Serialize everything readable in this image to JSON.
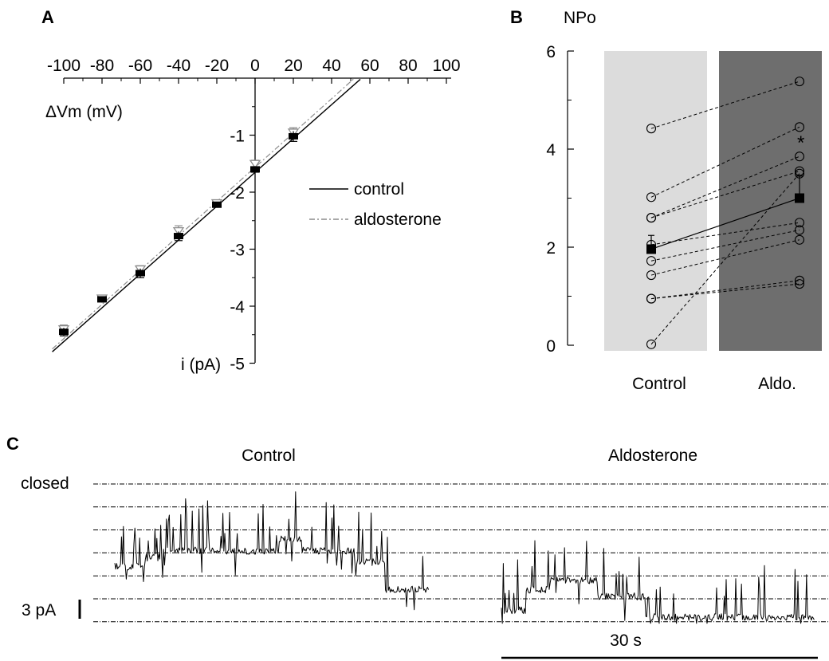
{
  "colors": {
    "control": "#000000",
    "aldosterone": "#8c8c8c",
    "control_band": "#dcdcdc",
    "aldo_band": "#6e6e6e"
  },
  "panels": {
    "a": "A",
    "b": "B",
    "c": "C"
  },
  "chart_data": [
    {
      "type": "line",
      "panel": "A",
      "xlabel": "ΔVm (mV)",
      "ylabel": "i (pA)",
      "xlim": [
        -100,
        100
      ],
      "ylim": [
        -5,
        0
      ],
      "x_ticks": [
        "-100",
        "-80",
        "-60",
        "-40",
        "-20",
        "0",
        "20",
        "40",
        "60",
        "80",
        "100"
      ],
      "y_ticks": [
        "-1",
        "-2",
        "-3",
        "-4",
        "-5"
      ],
      "x_tick_values": [
        -100,
        -80,
        -60,
        -40,
        -20,
        0,
        20,
        40,
        60,
        80,
        100
      ],
      "y_tick_values": [
        -1,
        -2,
        -3,
        -4,
        -5
      ],
      "legend": {
        "position": "right",
        "entries": [
          "control",
          "aldosterone"
        ]
      },
      "series": [
        {
          "name": "control",
          "style": "solid",
          "x": [
            -100,
            -80,
            -60,
            -40,
            -20,
            0,
            20
          ],
          "y": [
            -4.45,
            -3.88,
            -3.42,
            -2.77,
            -2.22,
            -1.6,
            -1.02
          ],
          "err": [
            0.07,
            0.04,
            0.08,
            0.08,
            0.04,
            0.05,
            0.09
          ],
          "fit": {
            "x": [
              -106,
              55
            ],
            "y": [
              -4.8,
              -0.02
            ]
          }
        },
        {
          "name": "aldosterone",
          "style": "dashdot",
          "x": [
            -100,
            -80,
            -60,
            -40,
            -20,
            0,
            20
          ],
          "y": [
            -4.4,
            -3.86,
            -3.35,
            -2.68,
            -2.19,
            -1.5,
            -0.95
          ],
          "err": [
            0.07,
            0.04,
            0.06,
            0.09,
            0.05,
            0.06,
            0.08
          ],
          "fit": {
            "x": [
              -106,
              52
            ],
            "y": [
              -4.75,
              0.0
            ]
          }
        }
      ]
    },
    {
      "type": "scatter",
      "panel": "B",
      "ylabel": "NPo",
      "ylim": [
        0,
        6
      ],
      "y_ticks": [
        "0",
        "2",
        "4",
        "6"
      ],
      "y_tick_values": [
        0,
        2,
        4,
        6
      ],
      "categories": [
        "Control",
        "Aldo."
      ],
      "pairs": [
        [
          4.42,
          5.38
        ],
        [
          3.02,
          4.45
        ],
        [
          2.6,
          3.85
        ],
        [
          2.6,
          3.55
        ],
        [
          2.05,
          2.5
        ],
        [
          1.72,
          2.35
        ],
        [
          1.43,
          2.15
        ],
        [
          0.95,
          1.32
        ],
        [
          0.95,
          1.25
        ],
        [
          0.02,
          3.5
        ]
      ],
      "mean": {
        "values": [
          1.96,
          3.0
        ],
        "err": [
          0.28,
          0.45
        ]
      },
      "significance": "*"
    },
    {
      "type": "line",
      "panel": "C",
      "traces": [
        "Control",
        "Aldosterone"
      ],
      "level_labels": {
        "closed": "closed"
      },
      "levels": 7,
      "scale_current": "3 pA",
      "scale_time": "30 s"
    }
  ]
}
